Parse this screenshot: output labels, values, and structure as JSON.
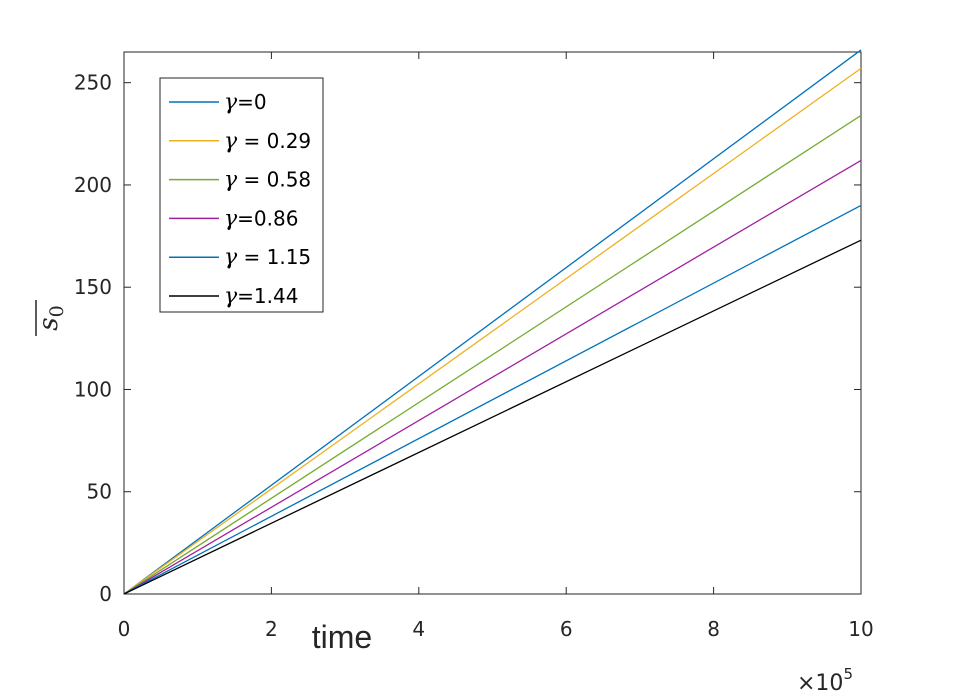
{
  "chart_data": {
    "type": "line",
    "title": "",
    "xlabel": "time",
    "ylabel": {
      "base": "s",
      "subscript": "0",
      "overline": true
    },
    "x_exponent_label": {
      "prefix": "×10",
      "power": "5"
    },
    "xlim": [
      0,
      10
    ],
    "ylim": [
      0,
      265
    ],
    "xticks": [
      0,
      2,
      4,
      6,
      8,
      10
    ],
    "yticks": [
      0,
      50,
      100,
      150,
      200,
      250
    ],
    "grid": false,
    "legend_position": "top-left",
    "x": [
      0,
      10
    ],
    "series": [
      {
        "name": "γ=0",
        "gamma_symbol": "γ",
        "gamma_value": "=0",
        "color": "#0072BD",
        "values": [
          0,
          266
        ]
      },
      {
        "name": "γ = 0.29",
        "gamma_symbol": "γ",
        "gamma_value": " = 0.29",
        "color": "#EDB120",
        "values": [
          0,
          257
        ]
      },
      {
        "name": "γ = 0.58",
        "gamma_symbol": "γ",
        "gamma_value": " = 0.58",
        "color": "#77AC30",
        "values": [
          0,
          234
        ]
      },
      {
        "name": "γ=0.86",
        "gamma_symbol": "γ",
        "gamma_value": "=0.86",
        "color": "#A020A0",
        "values": [
          0,
          212
        ]
      },
      {
        "name": "γ = 1.15",
        "gamma_symbol": "γ",
        "gamma_value": " = 1.15",
        "color": "#0072BD",
        "values": [
          0,
          190
        ]
      },
      {
        "name": "γ=1.44",
        "gamma_symbol": "γ",
        "gamma_value": "=1.44",
        "color": "#000000",
        "values": [
          0,
          173
        ]
      }
    ]
  }
}
